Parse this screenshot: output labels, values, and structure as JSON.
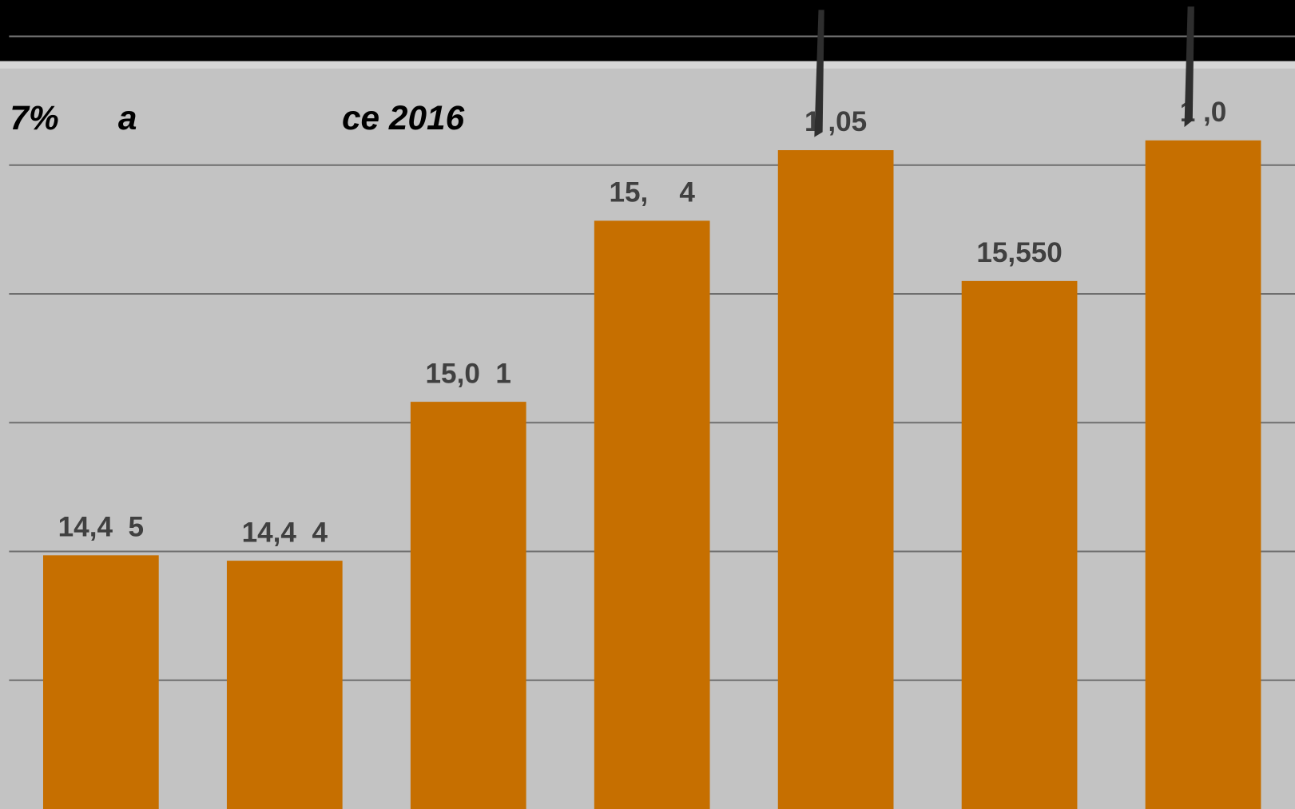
{
  "chart_data": {
    "type": "bar",
    "title_parts": [
      "7%",
      "a",
      "ce 2016"
    ],
    "categories": [
      null,
      null,
      null,
      null,
      null,
      null,
      null
    ],
    "values": [
      14485,
      14464,
      15081,
      15784,
      16058,
      15550,
      16096
    ],
    "value_labels": [
      "14,4  5",
      "14,4  4",
      "15,0  1",
      "15,    4",
      "1 ,05",
      "15,550",
      "1 ,0"
    ],
    "color": "#c66f00",
    "ylim": [
      13500,
      16500
    ],
    "yticks": [
      14000,
      14500,
      15000,
      15500,
      16000,
      16500
    ],
    "grid": true
  }
}
